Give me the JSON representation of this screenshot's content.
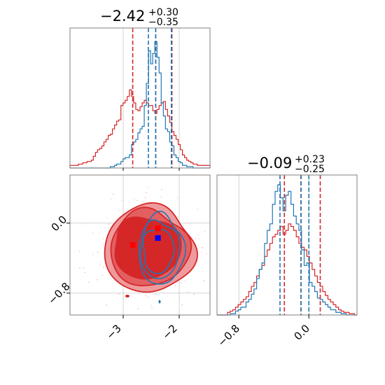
{
  "chart_data": {
    "type": "corner",
    "colors": {
      "series_a": "#1f77b4",
      "series_b": "#d62728",
      "marker_a": "#0000ff",
      "marker_b": "#ff0000"
    },
    "x_param": {
      "range": [
        -3.95,
        -1.45
      ],
      "ticks": [
        -3,
        -2
      ],
      "tick_labels": [
        "−3",
        "−2"
      ],
      "title": {
        "main": "−2.42",
        "sup": "+0.30",
        "sub": "−0.35"
      },
      "quantiles_blue": [
        -2.55,
        -2.42,
        -2.14
      ],
      "quantiles_red": [
        -2.83,
        -2.42,
        -2.13
      ],
      "hist_blue": [
        0,
        0,
        0,
        0,
        0,
        0,
        0,
        0,
        0,
        0,
        0,
        0,
        0,
        0,
        0,
        0,
        0,
        0,
        0,
        1,
        1,
        2,
        3,
        3,
        5,
        7,
        8,
        8,
        10,
        18,
        20,
        22,
        27,
        30,
        32,
        48,
        65,
        90,
        80,
        88,
        97,
        85,
        73,
        50,
        40,
        30,
        28,
        20,
        17,
        10,
        8,
        5,
        4,
        2,
        2,
        1,
        1,
        1,
        0,
        0,
        0,
        0,
        0,
        0,
        0,
        0
      ],
      "hist_red": [
        2,
        2,
        2,
        2,
        3,
        3,
        4,
        4,
        5,
        5,
        6,
        9,
        12,
        14,
        15,
        17,
        20,
        22,
        25,
        26,
        30,
        33,
        36,
        37,
        48,
        50,
        52,
        55,
        60,
        55,
        50,
        45,
        44,
        47,
        50,
        52,
        50,
        48,
        48,
        44,
        42,
        45,
        48,
        50,
        51,
        45,
        40,
        35,
        28,
        25,
        22,
        18,
        14,
        10,
        8,
        6,
        5,
        4,
        3,
        3,
        2,
        2,
        2,
        2,
        2,
        2
      ]
    },
    "y_param": {
      "range": [
        -1.05,
        0.55
      ],
      "ticks": [
        0.0,
        -0.8
      ],
      "tick_labels": [
        "0.0",
        "−0.8"
      ],
      "title": {
        "main": "−0.09",
        "sup": "+0.23",
        "sub": "−0.25"
      },
      "quantiles_blue": [
        -0.33,
        -0.09,
        0.0
      ],
      "quantiles_red": [
        -0.28,
        -0.09,
        0.13
      ],
      "hist_blue": [
        0,
        0,
        0,
        0,
        0,
        1,
        1,
        3,
        4,
        6,
        6,
        10,
        12,
        16,
        20,
        28,
        35,
        40,
        55,
        65,
        70,
        85,
        95,
        100,
        90,
        80,
        92,
        95,
        85,
        76,
        70,
        65,
        50,
        38,
        40,
        25,
        22,
        18,
        13,
        12,
        10,
        8,
        6,
        4,
        4,
        2,
        2,
        1,
        1,
        0,
        0,
        0,
        0
      ],
      "hist_red": [
        0,
        0,
        0,
        0,
        2,
        3,
        4,
        6,
        8,
        10,
        12,
        14,
        18,
        22,
        25,
        30,
        35,
        38,
        45,
        50,
        55,
        60,
        62,
        65,
        68,
        62,
        65,
        70,
        68,
        65,
        60,
        55,
        52,
        50,
        45,
        40,
        35,
        30,
        25,
        22,
        18,
        15,
        12,
        10,
        8,
        6,
        4,
        3,
        2,
        2,
        1,
        1,
        0
      ]
    },
    "joint": {
      "marker_blue": {
        "x": -2.38,
        "y": -0.17
      },
      "marker_red_1": {
        "x": -2.38,
        "y": -0.06
      },
      "marker_red_2": {
        "x": -2.83,
        "y": -0.25
      }
    }
  }
}
